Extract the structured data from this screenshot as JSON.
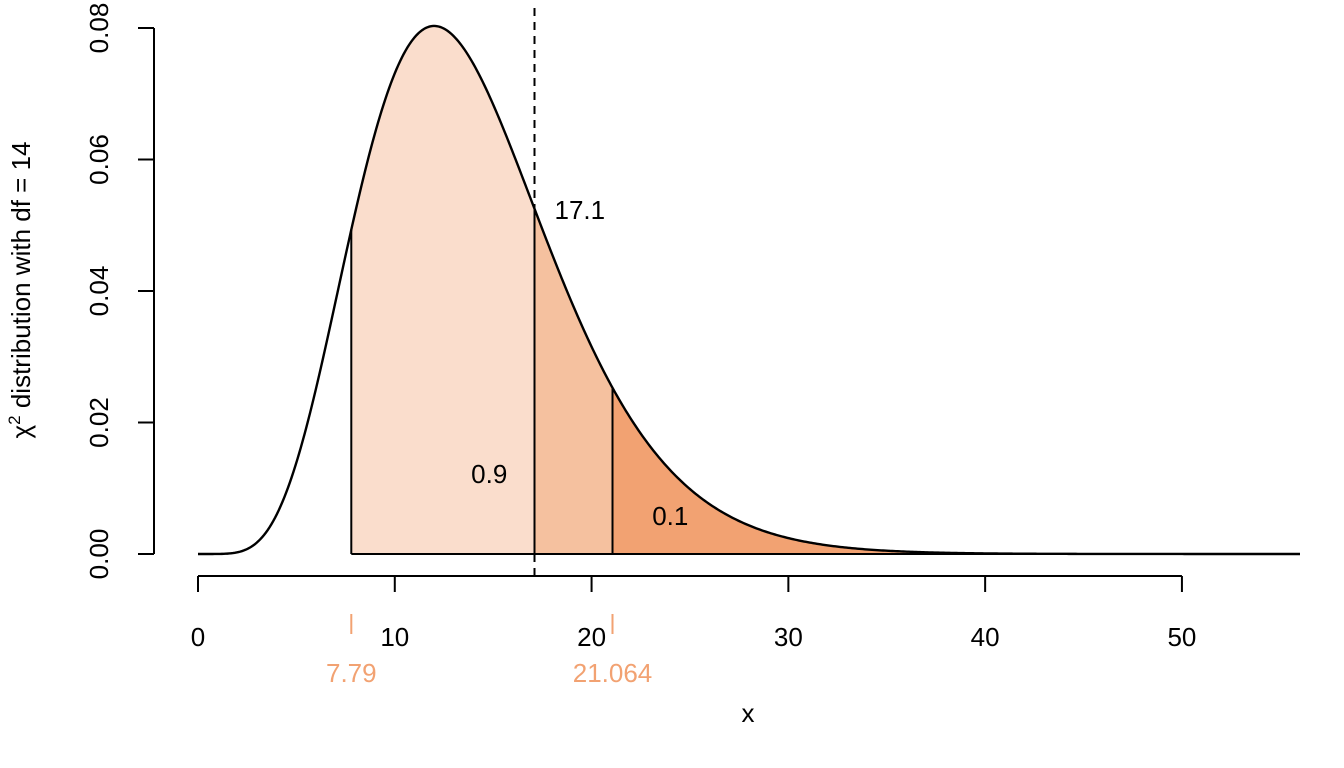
{
  "chart_data": {
    "type": "area",
    "distribution": "chi-squared",
    "df": 14,
    "xlabel": "x",
    "ylabel": "distribution with df = 14",
    "ylabel_symbol": "χ",
    "ylabel_superscript": "2",
    "xlim": [
      0,
      56
    ],
    "ylim": [
      0,
      0.08
    ],
    "x_ticks": [
      0,
      10,
      20,
      30,
      40,
      50
    ],
    "y_ticks": [
      0.0,
      0.02,
      0.04,
      0.06,
      0.08
    ],
    "y_tick_labels": [
      "0.00",
      "0.02",
      "0.04",
      "0.06",
      "0.08"
    ],
    "grid": false,
    "vline": {
      "x": 17.1,
      "style": "dashed",
      "label": "17.1"
    },
    "regions": [
      {
        "from": 7.79,
        "to": 17.1,
        "color": "#FADDCC"
      },
      {
        "from": 17.1,
        "to": 21.064,
        "color": "#F5C19F"
      },
      {
        "from": 21.064,
        "to": 56,
        "color": "#F2A272"
      }
    ],
    "critical_values": [
      {
        "x": 7.79,
        "label": "7.79",
        "color": "#F2A272"
      },
      {
        "x": 21.064,
        "label": "21.064",
        "color": "#F2A272"
      }
    ],
    "annotations": [
      {
        "text": "0.9",
        "x": 14.8,
        "y": 0.0122
      },
      {
        "text": "0.1",
        "x": 24.0,
        "y": 0.0058
      }
    ]
  }
}
